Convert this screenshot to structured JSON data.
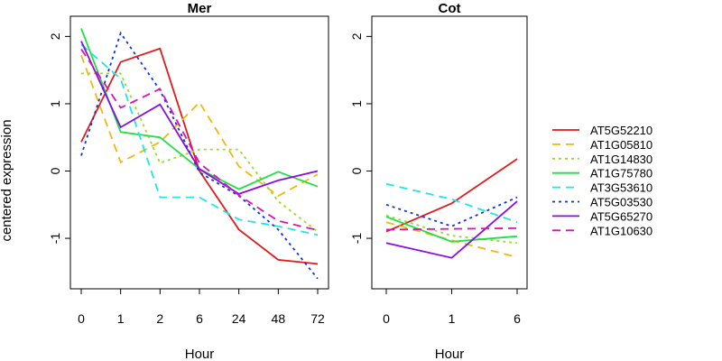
{
  "figure": {
    "ylabel": "centered expression"
  },
  "chart_data": [
    {
      "type": "line",
      "title": "Mer",
      "xlabel": "Hour",
      "ylabel": "centered expression",
      "categories": [
        "0",
        "1",
        "2",
        "6",
        "24",
        "48",
        "72"
      ],
      "ylim": [
        -1.75,
        2.3
      ],
      "yticks": [
        -1,
        0,
        1,
        2
      ],
      "series": [
        {
          "name": "AT5G52210",
          "color": "#e31a1c",
          "dash": "solid",
          "values": [
            0.43,
            1.62,
            1.82,
            0.0,
            -0.87,
            -1.32,
            -1.38
          ]
        },
        {
          "name": "AT1G05810",
          "color": "#f2b70d",
          "dash": "dashed",
          "values": [
            1.72,
            0.13,
            0.43,
            1.02,
            0.07,
            -0.37,
            -0.05
          ]
        },
        {
          "name": "AT1G14830",
          "color": "#9bdb2a",
          "dash": "dotted",
          "values": [
            1.45,
            1.45,
            0.12,
            0.32,
            0.32,
            -0.45,
            -0.9
          ]
        },
        {
          "name": "AT1G75780",
          "color": "#1ee044",
          "dash": "solid",
          "values": [
            2.12,
            0.58,
            0.5,
            0.03,
            -0.27,
            -0.01,
            -0.23
          ]
        },
        {
          "name": "AT3G53610",
          "color": "#1fe6e6",
          "dash": "dashed",
          "values": [
            1.88,
            1.37,
            -0.39,
            -0.39,
            -0.72,
            -0.82,
            -0.95
          ]
        },
        {
          "name": "AT5G03530",
          "color": "#0a34e0",
          "dash": "dotted",
          "values": [
            0.23,
            2.05,
            1.2,
            -0.02,
            -0.37,
            -0.87,
            -1.6
          ]
        },
        {
          "name": "AT5G65270",
          "color": "#8a0ce3",
          "dash": "solid",
          "values": [
            1.93,
            0.65,
            0.99,
            0.03,
            -0.34,
            -0.14,
            0.0
          ]
        },
        {
          "name": "AT1G10630",
          "color": "#e011b0",
          "dash": "dashed",
          "values": [
            1.81,
            0.94,
            1.22,
            0.12,
            -0.36,
            -0.74,
            -0.88
          ]
        }
      ]
    },
    {
      "type": "line",
      "title": "Cot",
      "xlabel": "Hour",
      "ylabel": "",
      "categories": [
        "0",
        "1",
        "6"
      ],
      "ylim": [
        -1.75,
        2.3
      ],
      "yticks": [
        -1,
        0,
        1,
        2
      ],
      "series": [
        {
          "name": "AT5G52210",
          "color": "#e31a1c",
          "dash": "solid",
          "values": [
            -0.9,
            -0.48,
            0.18
          ]
        },
        {
          "name": "AT1G05810",
          "color": "#f2b70d",
          "dash": "dashed",
          "values": [
            -0.76,
            -1.03,
            -1.28
          ]
        },
        {
          "name": "AT1G14830",
          "color": "#9bdb2a",
          "dash": "dotted",
          "values": [
            -0.66,
            -0.96,
            -1.07
          ]
        },
        {
          "name": "AT1G75780",
          "color": "#1ee044",
          "dash": "solid",
          "values": [
            -0.68,
            -1.05,
            -0.97
          ]
        },
        {
          "name": "AT3G53610",
          "color": "#1fe6e6",
          "dash": "dashed",
          "values": [
            -0.19,
            -0.42,
            -0.76
          ]
        },
        {
          "name": "AT5G03530",
          "color": "#0a34e0",
          "dash": "dotted",
          "values": [
            -0.5,
            -0.82,
            -0.39
          ]
        },
        {
          "name": "AT5G65270",
          "color": "#8a0ce3",
          "dash": "solid",
          "values": [
            -1.07,
            -1.29,
            -0.45
          ]
        },
        {
          "name": "AT1G10630",
          "color": "#e011b0",
          "dash": "dashed",
          "values": [
            -0.87,
            -0.86,
            -0.85
          ]
        }
      ]
    }
  ],
  "legend": {
    "position": "right",
    "entries": [
      {
        "label": "AT5G52210",
        "color": "#e31a1c",
        "dash": "solid"
      },
      {
        "label": "AT1G05810",
        "color": "#f2b70d",
        "dash": "dashed"
      },
      {
        "label": "AT1G14830",
        "color": "#9bdb2a",
        "dash": "dotted"
      },
      {
        "label": "AT1G75780",
        "color": "#1ee044",
        "dash": "solid"
      },
      {
        "label": "AT3G53610",
        "color": "#1fe6e6",
        "dash": "dashed"
      },
      {
        "label": "AT5G03530",
        "color": "#0a34e0",
        "dash": "dotted"
      },
      {
        "label": "AT5G65270",
        "color": "#8a0ce3",
        "dash": "solid"
      },
      {
        "label": "AT1G10630",
        "color": "#e011b0",
        "dash": "dashed"
      }
    ]
  }
}
